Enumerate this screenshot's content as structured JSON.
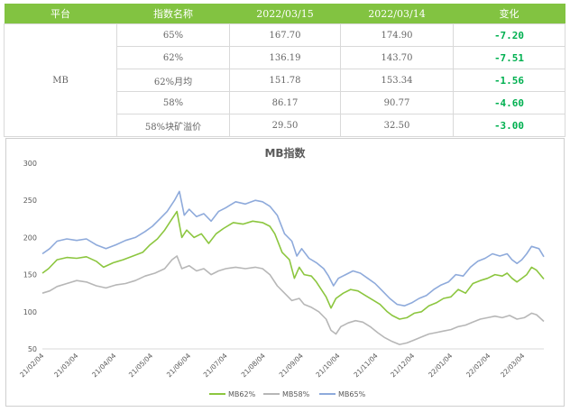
{
  "table": {
    "headers": [
      "平台",
      "指数名称",
      "2022/03/15",
      "2022/03/14",
      "变化"
    ],
    "platform": "MB",
    "rows": [
      {
        "name": "65%",
        "d1": "167.70",
        "d2": "174.90",
        "chg": "-7.20"
      },
      {
        "name": "62%",
        "d1": "136.19",
        "d2": "143.70",
        "chg": "-7.51"
      },
      {
        "name": "62%月均",
        "d1": "151.78",
        "d2": "153.34",
        "chg": "-1.56"
      },
      {
        "name": "58%",
        "d1": "86.17",
        "d2": "90.77",
        "chg": "-4.60"
      },
      {
        "name": "58%块矿溢价",
        "d1": "29.50",
        "d2": "32.50",
        "chg": "-3.00"
      }
    ]
  },
  "chart_data": {
    "type": "line",
    "title": "MB指数",
    "ylim": [
      50,
      300
    ],
    "yticks": [
      50,
      100,
      150,
      200,
      250,
      300
    ],
    "xlim": [
      0,
      410
    ],
    "xticks": [
      {
        "x": 0,
        "label": "21/02/04"
      },
      {
        "x": 28,
        "label": "21/03/04"
      },
      {
        "x": 59,
        "label": "21/04/04"
      },
      {
        "x": 89,
        "label": "21/05/04"
      },
      {
        "x": 120,
        "label": "21/06/04"
      },
      {
        "x": 150,
        "label": "21/07/04"
      },
      {
        "x": 181,
        "label": "21/08/04"
      },
      {
        "x": 212,
        "label": "21/09/04"
      },
      {
        "x": 242,
        "label": "21/10/04"
      },
      {
        "x": 273,
        "label": "21/11/04"
      },
      {
        "x": 303,
        "label": "21/12/04"
      },
      {
        "x": 334,
        "label": "22/01/04"
      },
      {
        "x": 365,
        "label": "22/02/04"
      },
      {
        "x": 393,
        "label": "22/03/04"
      }
    ],
    "grid": false,
    "legend": "bottom",
    "series": [
      {
        "name": "MB62%",
        "color": "#8cc63f",
        "points": [
          [
            0,
            152
          ],
          [
            5,
            158
          ],
          [
            12,
            170
          ],
          [
            20,
            173
          ],
          [
            28,
            172
          ],
          [
            36,
            174
          ],
          [
            44,
            168
          ],
          [
            50,
            160
          ],
          [
            58,
            166
          ],
          [
            66,
            170
          ],
          [
            74,
            175
          ],
          [
            82,
            180
          ],
          [
            88,
            190
          ],
          [
            94,
            198
          ],
          [
            100,
            210
          ],
          [
            106,
            225
          ],
          [
            110,
            235
          ],
          [
            114,
            200
          ],
          [
            118,
            210
          ],
          [
            124,
            200
          ],
          [
            130,
            205
          ],
          [
            136,
            192
          ],
          [
            142,
            205
          ],
          [
            148,
            212
          ],
          [
            156,
            220
          ],
          [
            164,
            218
          ],
          [
            172,
            222
          ],
          [
            180,
            220
          ],
          [
            186,
            215
          ],
          [
            190,
            205
          ],
          [
            196,
            180
          ],
          [
            202,
            170
          ],
          [
            206,
            145
          ],
          [
            210,
            160
          ],
          [
            214,
            150
          ],
          [
            220,
            148
          ],
          [
            224,
            140
          ],
          [
            228,
            130
          ],
          [
            232,
            120
          ],
          [
            236,
            105
          ],
          [
            240,
            118
          ],
          [
            246,
            125
          ],
          [
            252,
            130
          ],
          [
            258,
            128
          ],
          [
            264,
            122
          ],
          [
            270,
            116
          ],
          [
            276,
            110
          ],
          [
            282,
            100
          ],
          [
            286,
            95
          ],
          [
            292,
            90
          ],
          [
            298,
            92
          ],
          [
            304,
            98
          ],
          [
            310,
            100
          ],
          [
            316,
            108
          ],
          [
            322,
            112
          ],
          [
            328,
            118
          ],
          [
            334,
            120
          ],
          [
            340,
            130
          ],
          [
            346,
            125
          ],
          [
            352,
            138
          ],
          [
            358,
            142
          ],
          [
            364,
            145
          ],
          [
            370,
            150
          ],
          [
            376,
            148
          ],
          [
            380,
            152
          ],
          [
            384,
            145
          ],
          [
            388,
            140
          ],
          [
            392,
            145
          ],
          [
            396,
            150
          ],
          [
            400,
            160
          ],
          [
            404,
            156
          ],
          [
            410,
            144
          ]
        ]
      },
      {
        "name": "MB58%",
        "color": "#b7b7b7",
        "points": [
          [
            0,
            125
          ],
          [
            6,
            128
          ],
          [
            12,
            134
          ],
          [
            20,
            138
          ],
          [
            28,
            142
          ],
          [
            36,
            140
          ],
          [
            44,
            135
          ],
          [
            52,
            132
          ],
          [
            60,
            136
          ],
          [
            68,
            138
          ],
          [
            76,
            142
          ],
          [
            84,
            148
          ],
          [
            92,
            152
          ],
          [
            100,
            158
          ],
          [
            106,
            170
          ],
          [
            110,
            175
          ],
          [
            114,
            158
          ],
          [
            120,
            162
          ],
          [
            126,
            155
          ],
          [
            132,
            158
          ],
          [
            138,
            150
          ],
          [
            144,
            155
          ],
          [
            150,
            158
          ],
          [
            158,
            160
          ],
          [
            166,
            158
          ],
          [
            174,
            160
          ],
          [
            180,
            158
          ],
          [
            186,
            150
          ],
          [
            192,
            135
          ],
          [
            198,
            125
          ],
          [
            204,
            115
          ],
          [
            210,
            118
          ],
          [
            214,
            110
          ],
          [
            220,
            106
          ],
          [
            226,
            100
          ],
          [
            232,
            90
          ],
          [
            236,
            75
          ],
          [
            240,
            70
          ],
          [
            244,
            80
          ],
          [
            250,
            85
          ],
          [
            256,
            88
          ],
          [
            262,
            86
          ],
          [
            268,
            80
          ],
          [
            274,
            72
          ],
          [
            280,
            65
          ],
          [
            286,
            60
          ],
          [
            292,
            56
          ],
          [
            298,
            58
          ],
          [
            304,
            62
          ],
          [
            310,
            66
          ],
          [
            316,
            70
          ],
          [
            322,
            72
          ],
          [
            328,
            74
          ],
          [
            334,
            76
          ],
          [
            340,
            80
          ],
          [
            346,
            82
          ],
          [
            352,
            86
          ],
          [
            358,
            90
          ],
          [
            364,
            92
          ],
          [
            370,
            94
          ],
          [
            376,
            92
          ],
          [
            382,
            95
          ],
          [
            388,
            90
          ],
          [
            394,
            92
          ],
          [
            400,
            98
          ],
          [
            404,
            96
          ],
          [
            410,
            87
          ]
        ]
      },
      {
        "name": "MB65%",
        "color": "#8eaadb",
        "points": [
          [
            0,
            178
          ],
          [
            6,
            185
          ],
          [
            12,
            195
          ],
          [
            20,
            198
          ],
          [
            28,
            196
          ],
          [
            36,
            198
          ],
          [
            44,
            190
          ],
          [
            52,
            185
          ],
          [
            60,
            190
          ],
          [
            68,
            196
          ],
          [
            76,
            200
          ],
          [
            84,
            208
          ],
          [
            90,
            215
          ],
          [
            96,
            225
          ],
          [
            102,
            235
          ],
          [
            108,
            250
          ],
          [
            112,
            262
          ],
          [
            116,
            230
          ],
          [
            120,
            238
          ],
          [
            126,
            228
          ],
          [
            132,
            232
          ],
          [
            138,
            222
          ],
          [
            144,
            235
          ],
          [
            150,
            240
          ],
          [
            158,
            248
          ],
          [
            166,
            245
          ],
          [
            174,
            250
          ],
          [
            180,
            248
          ],
          [
            186,
            242
          ],
          [
            192,
            230
          ],
          [
            198,
            205
          ],
          [
            204,
            195
          ],
          [
            208,
            175
          ],
          [
            212,
            185
          ],
          [
            218,
            172
          ],
          [
            224,
            166
          ],
          [
            230,
            158
          ],
          [
            234,
            148
          ],
          [
            238,
            135
          ],
          [
            242,
            145
          ],
          [
            248,
            150
          ],
          [
            254,
            155
          ],
          [
            260,
            152
          ],
          [
            266,
            145
          ],
          [
            272,
            138
          ],
          [
            278,
            128
          ],
          [
            284,
            118
          ],
          [
            290,
            110
          ],
          [
            296,
            108
          ],
          [
            302,
            112
          ],
          [
            308,
            118
          ],
          [
            314,
            122
          ],
          [
            320,
            130
          ],
          [
            326,
            136
          ],
          [
            332,
            140
          ],
          [
            338,
            150
          ],
          [
            344,
            148
          ],
          [
            350,
            160
          ],
          [
            356,
            168
          ],
          [
            362,
            172
          ],
          [
            368,
            178
          ],
          [
            374,
            175
          ],
          [
            380,
            178
          ],
          [
            384,
            170
          ],
          [
            388,
            165
          ],
          [
            392,
            170
          ],
          [
            396,
            178
          ],
          [
            400,
            188
          ],
          [
            406,
            185
          ],
          [
            410,
            174
          ]
        ]
      }
    ]
  }
}
